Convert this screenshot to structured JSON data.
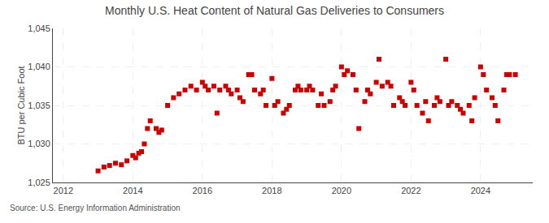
{
  "chart_data": {
    "type": "scatter",
    "title": "Monthly U.S. Heat Content of Natural Gas Deliveries to Consumers",
    "ylabel": "BTU per Cubic Foot",
    "annotations": [
      "Source: U.S. Energy Information Administration"
    ],
    "color": "#cc0000",
    "marker": "square",
    "grid": true,
    "xlim": [
      2011.7,
      2025.5
    ],
    "xticks": [
      2012,
      2014,
      2016,
      2018,
      2020,
      2022,
      2024
    ],
    "ylim": [
      1025,
      1045
    ],
    "yticks": [
      {
        "value": 1025,
        "label": "1,025"
      },
      {
        "value": 1030,
        "label": "1,030"
      },
      {
        "value": 1035,
        "label": "1,035"
      },
      {
        "value": 1040,
        "label": "1,040"
      },
      {
        "value": 1045,
        "label": "1,045"
      }
    ],
    "x": [
      2013.0,
      2013.17,
      2013.33,
      2013.5,
      2013.67,
      2013.83,
      2014.0,
      2014.08,
      2014.17,
      2014.25,
      2014.33,
      2014.42,
      2014.5,
      2014.67,
      2014.75,
      2014.83,
      2015.0,
      2015.17,
      2015.33,
      2015.5,
      2015.67,
      2015.83,
      2016.0,
      2016.08,
      2016.17,
      2016.33,
      2016.42,
      2016.5,
      2016.67,
      2016.75,
      2016.83,
      2017.0,
      2017.08,
      2017.17,
      2017.33,
      2017.42,
      2017.5,
      2017.67,
      2017.75,
      2017.83,
      2018.0,
      2018.08,
      2018.17,
      2018.33,
      2018.42,
      2018.5,
      2018.67,
      2018.75,
      2018.83,
      2019.0,
      2019.08,
      2019.17,
      2019.33,
      2019.42,
      2019.5,
      2019.67,
      2019.75,
      2019.83,
      2020.0,
      2020.08,
      2020.17,
      2020.33,
      2020.42,
      2020.5,
      2020.67,
      2020.75,
      2020.83,
      2021.0,
      2021.08,
      2021.17,
      2021.33,
      2021.42,
      2021.5,
      2021.67,
      2021.75,
      2021.83,
      2022.0,
      2022.08,
      2022.17,
      2022.33,
      2022.42,
      2022.5,
      2022.67,
      2022.75,
      2022.83,
      2023.0,
      2023.08,
      2023.17,
      2023.33,
      2023.42,
      2023.5,
      2023.67,
      2023.75,
      2023.83,
      2024.0,
      2024.08,
      2024.17,
      2024.33,
      2024.42,
      2024.5,
      2024.67,
      2024.75,
      2024.83,
      2025.0
    ],
    "values": [
      1026.5,
      1027.0,
      1027.2,
      1027.5,
      1027.3,
      1027.8,
      1028.5,
      1028.2,
      1028.8,
      1029.0,
      1030.0,
      1032.0,
      1033.0,
      1032.0,
      1031.5,
      1031.8,
      1035.0,
      1036.0,
      1036.5,
      1037.0,
      1037.5,
      1037.0,
      1038.0,
      1037.5,
      1037.0,
      1037.5,
      1034.0,
      1037.0,
      1037.5,
      1037.0,
      1036.5,
      1037.0,
      1036.0,
      1035.5,
      1039.0,
      1039.0,
      1037.0,
      1036.5,
      1037.0,
      1035.0,
      1038.5,
      1035.0,
      1035.5,
      1034.0,
      1034.5,
      1035.0,
      1037.0,
      1037.5,
      1037.0,
      1037.0,
      1037.5,
      1037.0,
      1035.0,
      1036.5,
      1035.0,
      1035.5,
      1037.0,
      1037.5,
      1040.0,
      1039.0,
      1039.5,
      1039.0,
      1037.0,
      1032.0,
      1035.5,
      1037.0,
      1036.5,
      1038.0,
      1041.0,
      1037.5,
      1038.0,
      1037.5,
      1035.0,
      1036.0,
      1035.5,
      1035.0,
      1038.0,
      1037.0,
      1035.0,
      1034.0,
      1035.5,
      1033.0,
      1035.0,
      1036.0,
      1035.5,
      1041.0,
      1035.0,
      1035.5,
      1035.0,
      1034.5,
      1034.0,
      1035.0,
      1033.0,
      1036.0,
      1040.0,
      1039.0,
      1037.0,
      1036.0,
      1035.0,
      1033.0,
      1037.0,
      1039.0,
      1039.0,
      1039.0
    ]
  }
}
